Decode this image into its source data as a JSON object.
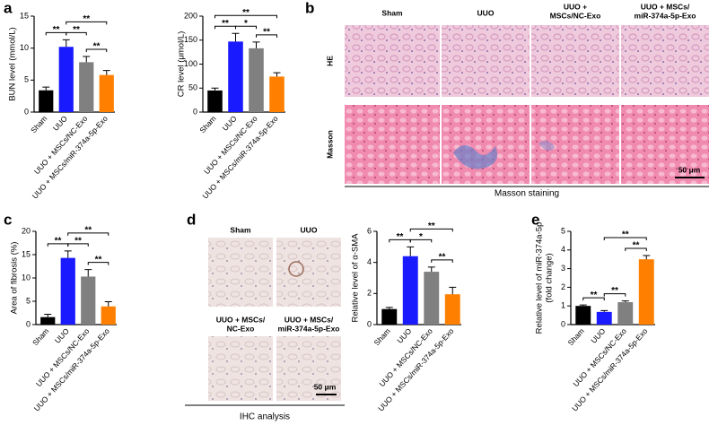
{
  "panel_labels": [
    "a",
    "b",
    "c",
    "d",
    "e"
  ],
  "chart_data": [
    {
      "type": "bar",
      "ylabel": [
        "BUN level (mmol/L)"
      ],
      "categories": [
        "Sham",
        "UUO",
        "UUO + MSCs/NC-Exo",
        "UUO + MSCs/miR-374a-5p-Exo"
      ],
      "values": [
        3.4,
        10.2,
        7.8,
        5.8
      ],
      "errors": [
        0.5,
        1.1,
        0.9,
        0.7
      ],
      "colors": [
        "#000000",
        "#1a1aff",
        "#808080",
        "#ff8000"
      ],
      "ylim": [
        0,
        15
      ],
      "yticks": [
        0,
        5,
        10,
        15
      ],
      "significance": [
        {
          "groups": [
            "Sham",
            "UUO"
          ],
          "label": "**"
        },
        {
          "groups": [
            "UUO",
            "UUO + MSCs/NC-Exo"
          ],
          "label": "**"
        },
        {
          "groups": [
            "UUO + MSCs/NC-Exo",
            "UUO + MSCs/miR-374a-5p-Exo"
          ],
          "label": "**"
        },
        {
          "groups": [
            "UUO",
            "UUO + MSCs/miR-374a-5p-Exo"
          ],
          "label": "**"
        }
      ]
    },
    {
      "type": "bar",
      "ylabel": [
        "CR level (μmol/L)"
      ],
      "categories": [
        "Sham",
        "UUO",
        "UUO + MSCs/NC-Exo",
        "UUO + MSCs/miR-374a-5p-Exo"
      ],
      "values": [
        45,
        147,
        133,
        74
      ],
      "errors": [
        5,
        17,
        13,
        8
      ],
      "colors": [
        "#000000",
        "#1a1aff",
        "#808080",
        "#ff8000"
      ],
      "ylim": [
        0,
        200
      ],
      "yticks": [
        0,
        50,
        100,
        150,
        200
      ],
      "significance": [
        {
          "groups": [
            "Sham",
            "UUO"
          ],
          "label": "**"
        },
        {
          "groups": [
            "UUO",
            "UUO + MSCs/NC-Exo"
          ],
          "label": "*"
        },
        {
          "groups": [
            "UUO + MSCs/NC-Exo",
            "UUO + MSCs/miR-374a-5p-Exo"
          ],
          "label": "**"
        },
        {
          "groups": [
            "Sham",
            "UUO + MSCs/miR-374a-5p-Exo"
          ],
          "label": "**"
        }
      ]
    },
    {
      "type": "bar",
      "ylabel": [
        "Area of fibrosis (%)"
      ],
      "categories": [
        "Sham",
        "UUO",
        "UUO + MSCs/NC-Exo",
        "UUO + MSCs/miR-374a-5p-Exo"
      ],
      "values": [
        1.6,
        14.3,
        10.3,
        3.9
      ],
      "errors": [
        0.6,
        1.5,
        1.5,
        1.0
      ],
      "colors": [
        "#000000",
        "#1a1aff",
        "#808080",
        "#ff8000"
      ],
      "ylim": [
        0,
        20
      ],
      "yticks": [
        0,
        5,
        10,
        15,
        20
      ],
      "significance": [
        {
          "groups": [
            "Sham",
            "UUO"
          ],
          "label": "**"
        },
        {
          "groups": [
            "UUO",
            "UUO + MSCs/NC-Exo"
          ],
          "label": "**"
        },
        {
          "groups": [
            "UUO + MSCs/NC-Exo",
            "UUO + MSCs/miR-374a-5p-Exo"
          ],
          "label": "**"
        },
        {
          "groups": [
            "UUO",
            "UUO + MSCs/miR-374a-5p-Exo"
          ],
          "label": "**"
        }
      ]
    },
    {
      "type": "bar",
      "ylabel": [
        "Relative level of α-SMA"
      ],
      "categories": [
        "Sham",
        "UUO",
        "UUO + MSCs/NC-Exo",
        "UUO + MSCs/miR-374a-5p-Exo"
      ],
      "values": [
        1.0,
        4.4,
        3.4,
        1.95
      ],
      "errors": [
        0.1,
        0.6,
        0.3,
        0.45
      ],
      "colors": [
        "#000000",
        "#1a1aff",
        "#808080",
        "#ff8000"
      ],
      "ylim": [
        0,
        6
      ],
      "yticks": [
        0,
        2,
        4,
        6
      ],
      "significance": [
        {
          "groups": [
            "Sham",
            "UUO"
          ],
          "label": "**"
        },
        {
          "groups": [
            "UUO",
            "UUO + MSCs/NC-Exo"
          ],
          "label": "*"
        },
        {
          "groups": [
            "UUO + MSCs/NC-Exo",
            "UUO + MSCs/miR-374a-5p-Exo"
          ],
          "label": "**"
        },
        {
          "groups": [
            "UUO",
            "UUO + MSCs/miR-374a-5p-Exo"
          ],
          "label": "**"
        }
      ]
    },
    {
      "type": "bar",
      "ylabel": [
        "Relative level of miR-374a-5p",
        "(fold change)"
      ],
      "categories": [
        "Sham",
        "UUO",
        "UUO + MSCs/NC-Exo",
        "UUO + MSCs/miR-374a-5p-Exo"
      ],
      "values": [
        1.0,
        0.68,
        1.2,
        3.5
      ],
      "errors": [
        0.05,
        0.07,
        0.07,
        0.2
      ],
      "colors": [
        "#000000",
        "#1a1aff",
        "#808080",
        "#ff8000"
      ],
      "ylim": [
        0,
        5
      ],
      "yticks": [
        0,
        1,
        2,
        3,
        4,
        5
      ],
      "significance": [
        {
          "groups": [
            "Sham",
            "UUO"
          ],
          "label": "**"
        },
        {
          "groups": [
            "UUO",
            "UUO + MSCs/NC-Exo"
          ],
          "label": "**"
        },
        {
          "groups": [
            "UUO + MSCs/NC-Exo",
            "UUO + MSCs/miR-374a-5p-Exo"
          ],
          "label": "**"
        },
        {
          "groups": [
            "UUO",
            "UUO + MSCs/miR-374a-5p-Exo"
          ],
          "label": "**"
        }
      ]
    }
  ],
  "histology": {
    "column_labels": [
      [
        "Sham"
      ],
      [
        "UUO"
      ],
      [
        "UUO +",
        "MSCs/NC-Exo"
      ],
      [
        "UUO + MSCs/",
        "miR-374a-5p-Exo"
      ]
    ],
    "row_labels": [
      "HE",
      "Masson"
    ],
    "scale_bar": "50 μm",
    "caption": "Masson staining"
  },
  "ihc": {
    "image_labels": [
      [
        "Sham"
      ],
      [
        "UUO"
      ],
      [
        "UUO +  MSCs/",
        "NC-Exo"
      ],
      [
        "UUO + MSCs/",
        "miR-374a-5p-Exo"
      ]
    ],
    "scale_bar": "50 μm",
    "caption": "IHC analysis"
  }
}
